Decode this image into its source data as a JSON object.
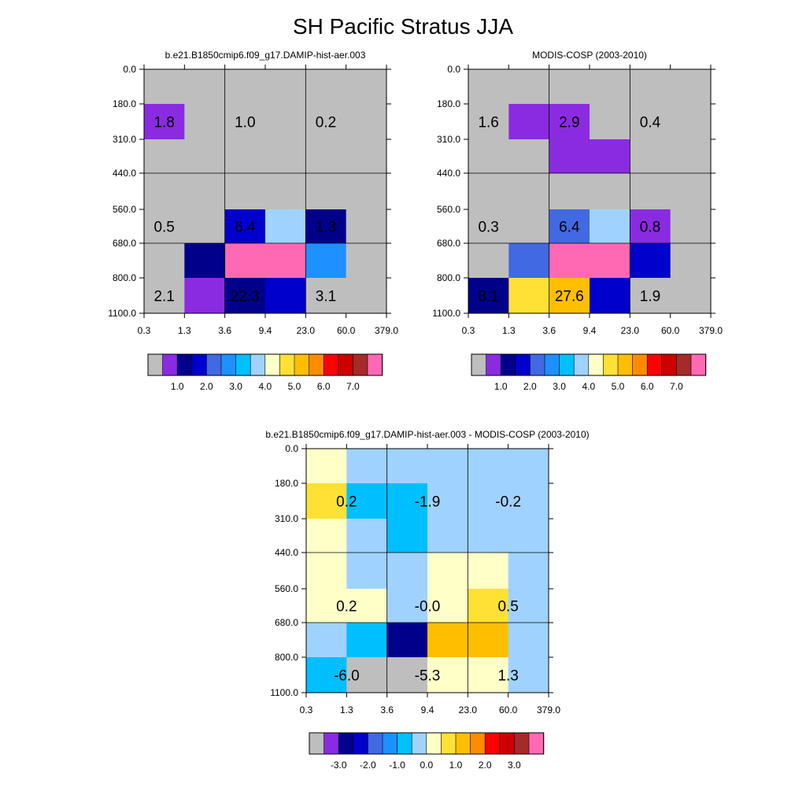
{
  "title": "SH Pacific Stratus JJA",
  "x_ticks": [
    "0.3",
    "1.3",
    "3.6",
    "9.4",
    "23.0",
    "60.0",
    "379.0"
  ],
  "y_ticks": [
    "0.0",
    "180.0",
    "310.0",
    "440.0",
    "560.0",
    "680.0",
    "800.0",
    "1100.0"
  ],
  "colors": {
    "missing": "#bebebe",
    "main_palette": [
      "#bebebe",
      "#8a2be2",
      "#00008b",
      "#0000cd",
      "#4169e1",
      "#1e90ff",
      "#00bfff",
      "#a0d2ff",
      "#ffffc8",
      "#ffe135",
      "#ffbf00",
      "#ff8c00",
      "#ff0000",
      "#cd0000",
      "#a52a2a",
      "#ff69b4"
    ],
    "diff_palette": [
      "#bebebe",
      "#8a2be2",
      "#00008b",
      "#0000cd",
      "#4169e1",
      "#1e90ff",
      "#00bfff",
      "#a0d2ff",
      "#ffffc8",
      "#ffe135",
      "#ffbf00",
      "#ff8c00",
      "#ff0000",
      "#cd0000",
      "#a52a2a",
      "#ff69b4"
    ]
  },
  "chart_data": [
    {
      "type": "heatmap",
      "title": "b.e21.B1850cmip6.f09_g17.DAMIP-hist-aer.003",
      "xlabel": "",
      "ylabel": "",
      "x_bins": [
        "0.3",
        "1.3",
        "3.6",
        "9.4",
        "23.0",
        "60.0",
        "379.0"
      ],
      "y_bins": [
        "0.0",
        "180.0",
        "310.0",
        "440.0",
        "560.0",
        "680.0",
        "800.0",
        "1100.0"
      ],
      "cell_colors": [
        [
          "#bebebe",
          "#bebebe",
          "#bebebe",
          "#bebebe",
          "#bebebe",
          "#bebebe"
        ],
        [
          "#8a2be2",
          "#bebebe",
          "#bebebe",
          "#bebebe",
          "#bebebe",
          "#bebebe"
        ],
        [
          "#bebebe",
          "#bebebe",
          "#bebebe",
          "#bebebe",
          "#bebebe",
          "#bebebe"
        ],
        [
          "#bebebe",
          "#bebebe",
          "#bebebe",
          "#bebebe",
          "#bebebe",
          "#bebebe"
        ],
        [
          "#bebebe",
          "#bebebe",
          "#0000cd",
          "#a0d2ff",
          "#00008b",
          "#bebebe"
        ],
        [
          "#bebebe",
          "#00008b",
          "#ff69b4",
          "#ff69b4",
          "#1e90ff",
          "#bebebe"
        ],
        [
          "#bebebe",
          "#8a2be2",
          "#00008b",
          "#0000cd",
          "#bebebe",
          "#bebebe"
        ]
      ],
      "labels": [
        {
          "text": "1.8",
          "row": 1,
          "col": 0.5
        },
        {
          "text": "1.0",
          "row": 1,
          "col": 2.5
        },
        {
          "text": "0.2",
          "row": 1,
          "col": 4.5
        },
        {
          "text": "0.5",
          "row": 4,
          "col": 0.5
        },
        {
          "text": "6.4",
          "row": 4,
          "col": 2.5
        },
        {
          "text": "1.3",
          "row": 4,
          "col": 4.5
        },
        {
          "text": "2.1",
          "row": 6,
          "col": 0.5
        },
        {
          "text": "22.3",
          "row": 6,
          "col": 2.5
        },
        {
          "text": "3.1",
          "row": 6,
          "col": 4.5
        }
      ],
      "colorbar": {
        "labels": [
          "1.0",
          "2.0",
          "3.0",
          "4.0",
          "5.0",
          "6.0",
          "7.0"
        ]
      }
    },
    {
      "type": "heatmap",
      "title": "MODIS-COSP (2003-2010)",
      "xlabel": "",
      "ylabel": "",
      "x_bins": [
        "0.3",
        "1.3",
        "3.6",
        "9.4",
        "23.0",
        "60.0",
        "379.0"
      ],
      "y_bins": [
        "0.0",
        "180.0",
        "310.0",
        "440.0",
        "560.0",
        "680.0",
        "800.0",
        "1100.0"
      ],
      "cell_colors": [
        [
          "#bebebe",
          "#bebebe",
          "#bebebe",
          "#bebebe",
          "#bebebe",
          "#bebebe"
        ],
        [
          "#bebebe",
          "#8a2be2",
          "#8a2be2",
          "#bebebe",
          "#bebebe",
          "#bebebe"
        ],
        [
          "#bebebe",
          "#bebebe",
          "#8a2be2",
          "#8a2be2",
          "#bebebe",
          "#bebebe"
        ],
        [
          "#bebebe",
          "#bebebe",
          "#bebebe",
          "#bebebe",
          "#bebebe",
          "#bebebe"
        ],
        [
          "#bebebe",
          "#bebebe",
          "#4169e1",
          "#a0d2ff",
          "#8a2be2",
          "#bebebe"
        ],
        [
          "#bebebe",
          "#4169e1",
          "#ff69b4",
          "#ff69b4",
          "#0000cd",
          "#bebebe"
        ],
        [
          "#00008b",
          "#ffe135",
          "#ffbf00",
          "#0000cd",
          "#bebebe",
          "#bebebe"
        ]
      ],
      "labels": [
        {
          "text": "1.6",
          "row": 1,
          "col": 0.5
        },
        {
          "text": "2.9",
          "row": 1,
          "col": 2.5
        },
        {
          "text": "0.4",
          "row": 1,
          "col": 4.5
        },
        {
          "text": "0.3",
          "row": 4,
          "col": 0.5
        },
        {
          "text": "6.4",
          "row": 4,
          "col": 2.5
        },
        {
          "text": "0.8",
          "row": 4,
          "col": 4.5
        },
        {
          "text": "8.1",
          "row": 6,
          "col": 0.5
        },
        {
          "text": "27.6",
          "row": 6,
          "col": 2.5
        },
        {
          "text": "1.9",
          "row": 6,
          "col": 4.5
        }
      ],
      "colorbar": {
        "labels": [
          "1.0",
          "2.0",
          "3.0",
          "4.0",
          "5.0",
          "6.0",
          "7.0"
        ]
      }
    },
    {
      "type": "heatmap",
      "title": "b.e21.B1850cmip6.f09_g17.DAMIP-hist-aer.003 - MODIS-COSP (2003-2010)",
      "xlabel": "",
      "ylabel": "",
      "x_bins": [
        "0.3",
        "1.3",
        "3.6",
        "9.4",
        "23.0",
        "60.0",
        "379.0"
      ],
      "y_bins": [
        "0.0",
        "180.0",
        "310.0",
        "440.0",
        "560.0",
        "680.0",
        "800.0",
        "1100.0"
      ],
      "cell_colors": [
        [
          "#ffffc8",
          "#a0d2ff",
          "#a0d2ff",
          "#a0d2ff",
          "#a0d2ff",
          "#a0d2ff"
        ],
        [
          "#ffe135",
          "#00bfff",
          "#00bfff",
          "#a0d2ff",
          "#a0d2ff",
          "#a0d2ff"
        ],
        [
          "#ffffc8",
          "#a0d2ff",
          "#00bfff",
          "#a0d2ff",
          "#a0d2ff",
          "#a0d2ff"
        ],
        [
          "#ffffc8",
          "#a0d2ff",
          "#a0d2ff",
          "#ffffc8",
          "#ffffc8",
          "#a0d2ff"
        ],
        [
          "#ffffc8",
          "#ffffc8",
          "#a0d2ff",
          "#ffffc8",
          "#ffe135",
          "#a0d2ff"
        ],
        [
          "#a0d2ff",
          "#00bfff",
          "#00008b",
          "#ffbf00",
          "#ffbf00",
          "#a0d2ff"
        ],
        [
          "#00bfff",
          "#bebebe",
          "#bebebe",
          "#ffffc8",
          "#ffffc8",
          "#a0d2ff"
        ]
      ],
      "labels": [
        {
          "text": "0.2",
          "row": 1,
          "col": 1
        },
        {
          "text": "-1.9",
          "row": 1,
          "col": 3
        },
        {
          "text": "-0.2",
          "row": 1,
          "col": 5
        },
        {
          "text": "0.2",
          "row": 4,
          "col": 1
        },
        {
          "text": "-0.0",
          "row": 4,
          "col": 3
        },
        {
          "text": "0.5",
          "row": 4,
          "col": 5
        },
        {
          "text": "-6.0",
          "row": 6,
          "col": 1
        },
        {
          "text": "-5.3",
          "row": 6,
          "col": 3
        },
        {
          "text": "1.3",
          "row": 6,
          "col": 5
        }
      ],
      "colorbar": {
        "labels": [
          "-3.0",
          "-2.0",
          "-1.0",
          "0.0",
          "1.0",
          "2.0",
          "3.0"
        ]
      }
    }
  ]
}
